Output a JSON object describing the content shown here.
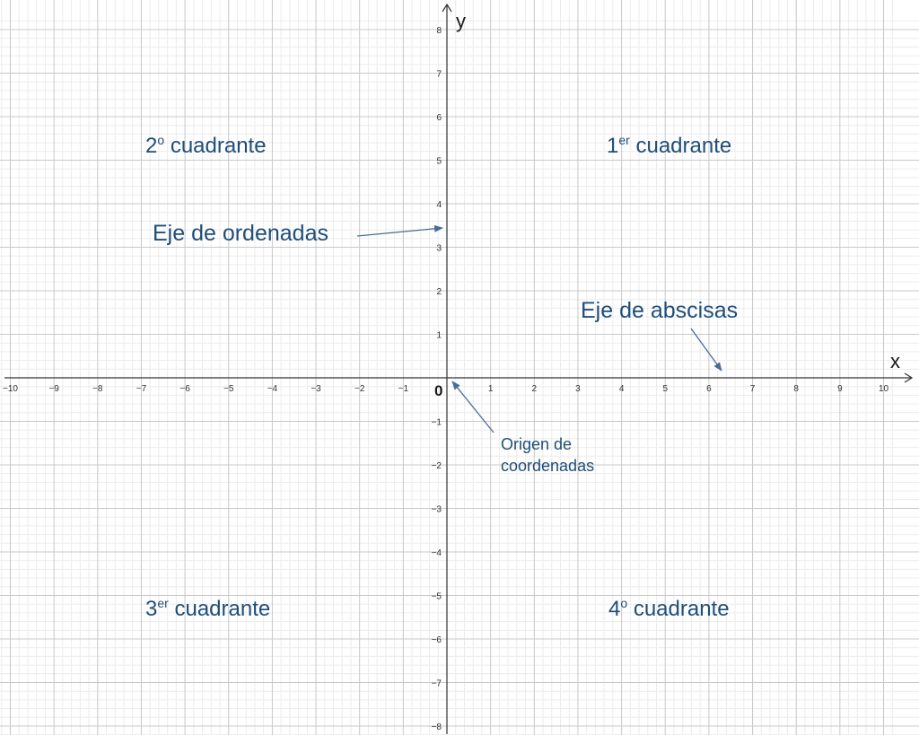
{
  "axes": {
    "x_label": "x",
    "y_label": "y",
    "origin_label": "0",
    "x_range": [
      -10,
      10
    ],
    "y_range": [
      -8,
      8
    ],
    "x_ticks": [
      "−10",
      "−9",
      "−8",
      "−7",
      "−6",
      "−5",
      "−4",
      "−3",
      "−2",
      "−1",
      "1",
      "2",
      "3",
      "4",
      "5",
      "6",
      "7",
      "8",
      "9",
      "10"
    ],
    "y_ticks": [
      "8",
      "7",
      "6",
      "5",
      "4",
      "3",
      "2",
      "1",
      "−1",
      "−2",
      "−3",
      "−4",
      "−5",
      "−6",
      "−7",
      "−8"
    ],
    "grid": "on"
  },
  "quadrants": {
    "q1": {
      "num": "1",
      "sup": "er",
      "text": " cuadrante"
    },
    "q2": {
      "num": "2",
      "sup": "o",
      "text": " cuadrante"
    },
    "q3": {
      "num": "3",
      "sup": "er",
      "text": " cuadrante"
    },
    "q4": {
      "num": "4",
      "sup": "o",
      "text": " cuadrante"
    }
  },
  "annotations": {
    "ordenadas": "Eje de ordenadas",
    "abscisas": "Eje de abscisas",
    "origen_line1": "Origen de",
    "origen_line2": "coordenadas"
  },
  "colors": {
    "label": "#1f4e79",
    "arrow": "#4a6d94",
    "axis": "#333333",
    "grid_major": "#c8c8c8",
    "grid_minor": "#ececec"
  }
}
